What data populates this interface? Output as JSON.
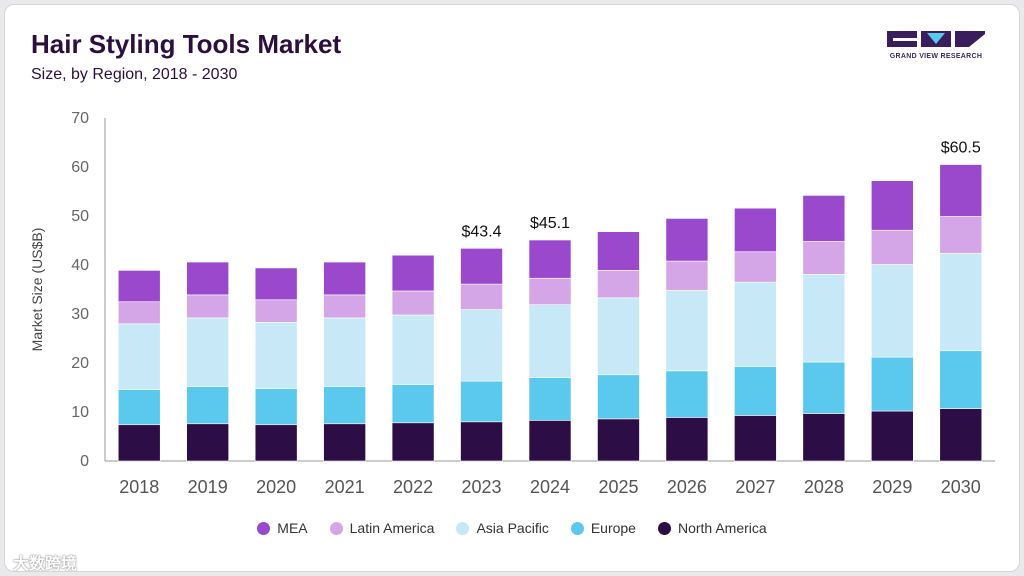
{
  "header": {
    "title": "Hair Styling Tools Market",
    "subtitle": "Size, by Region, 2018 - 2030"
  },
  "logo": {
    "text": "GRAND VIEW RESEARCH"
  },
  "watermark": {
    "text": "大数跨境"
  },
  "chart_data": {
    "type": "bar",
    "stacked": true,
    "categories": [
      "2018",
      "2019",
      "2020",
      "2021",
      "2022",
      "2023",
      "2024",
      "2025",
      "2026",
      "2027",
      "2028",
      "2029",
      "2030"
    ],
    "ylabel": "Market Size (US$B)",
    "ylim": [
      0,
      70
    ],
    "yticks": [
      0,
      10,
      20,
      30,
      40,
      50,
      60,
      70
    ],
    "grid": false,
    "legend_position": "bottom",
    "series": [
      {
        "name": "North America",
        "color": "#2d0d45",
        "values": [
          7.4,
          7.6,
          7.4,
          7.6,
          7.8,
          8.0,
          8.3,
          8.6,
          8.9,
          9.3,
          9.7,
          10.2,
          10.7
        ]
      },
      {
        "name": "Europe",
        "color": "#5bc8ee",
        "values": [
          7.2,
          7.6,
          7.4,
          7.6,
          7.8,
          8.3,
          8.7,
          9.0,
          9.5,
          10.0,
          10.5,
          11.0,
          11.8
        ]
      },
      {
        "name": "Asia Pacific",
        "color": "#c7e9f7",
        "values": [
          13.4,
          14.0,
          13.5,
          14.0,
          14.2,
          14.6,
          14.9,
          15.7,
          16.4,
          17.2,
          17.9,
          18.9,
          19.9
        ]
      },
      {
        "name": "Latin America",
        "color": "#d4a6e8",
        "values": [
          4.5,
          4.7,
          4.6,
          4.7,
          4.9,
          5.2,
          5.4,
          5.6,
          6.0,
          6.2,
          6.7,
          7.0,
          7.5
        ]
      },
      {
        "name": "MEA",
        "color": "#9b49cc",
        "values": [
          6.4,
          6.7,
          6.5,
          6.7,
          7.3,
          7.3,
          7.8,
          7.9,
          8.7,
          8.9,
          9.4,
          10.1,
          10.6
        ]
      }
    ],
    "annotations": [
      {
        "category": "2023",
        "label": "$43.4"
      },
      {
        "category": "2024",
        "label": "$45.1"
      },
      {
        "category": "2030",
        "label": "$60.5"
      }
    ]
  }
}
